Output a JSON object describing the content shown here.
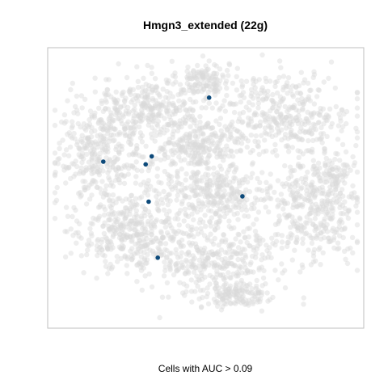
{
  "chart_data": {
    "type": "scatter",
    "title": "Hmgn3_extended (22g)",
    "subtitle": "",
    "xlabel": "Cells with AUC > 0.09",
    "ylabel": "",
    "xlim": [
      0,
      100
    ],
    "ylim": [
      0,
      100
    ],
    "grid": false,
    "legend": "none",
    "colors": {
      "background_cells": "#d9d9d9",
      "highlighted_cells": "#0d4a7a",
      "frame": "#bfbfbf"
    },
    "background_clusters": [
      {
        "cx": 49,
        "cy": 91,
        "sx": 5,
        "sy": 4,
        "n": 120
      },
      {
        "cx": 32,
        "cy": 80,
        "sx": 12,
        "sy": 7,
        "n": 320
      },
      {
        "cx": 76,
        "cy": 78,
        "sx": 13,
        "sy": 9,
        "n": 380
      },
      {
        "cx": 15,
        "cy": 62,
        "sx": 9,
        "sy": 12,
        "n": 360
      },
      {
        "cx": 47,
        "cy": 66,
        "sx": 9,
        "sy": 5,
        "n": 240
      },
      {
        "cx": 52,
        "cy": 48,
        "sx": 13,
        "sy": 7,
        "n": 360
      },
      {
        "cx": 86,
        "cy": 42,
        "sx": 9,
        "sy": 12,
        "n": 360
      },
      {
        "cx": 25,
        "cy": 33,
        "sx": 10,
        "sy": 8,
        "n": 340
      },
      {
        "cx": 53,
        "cy": 24,
        "sx": 13,
        "sy": 9,
        "n": 360
      },
      {
        "cx": 60,
        "cy": 10,
        "sx": 7,
        "sy": 3,
        "n": 120
      },
      {
        "cx": 92,
        "cy": 56,
        "sx": 4,
        "sy": 3,
        "n": 50
      }
    ],
    "highlighted_points": [
      {
        "x": 51,
        "y": 84
      },
      {
        "x": 32,
        "y": 62
      },
      {
        "x": 16,
        "y": 60
      },
      {
        "x": 30,
        "y": 59
      },
      {
        "x": 31,
        "y": 45
      },
      {
        "x": 62,
        "y": 47
      },
      {
        "x": 34,
        "y": 24
      }
    ]
  }
}
